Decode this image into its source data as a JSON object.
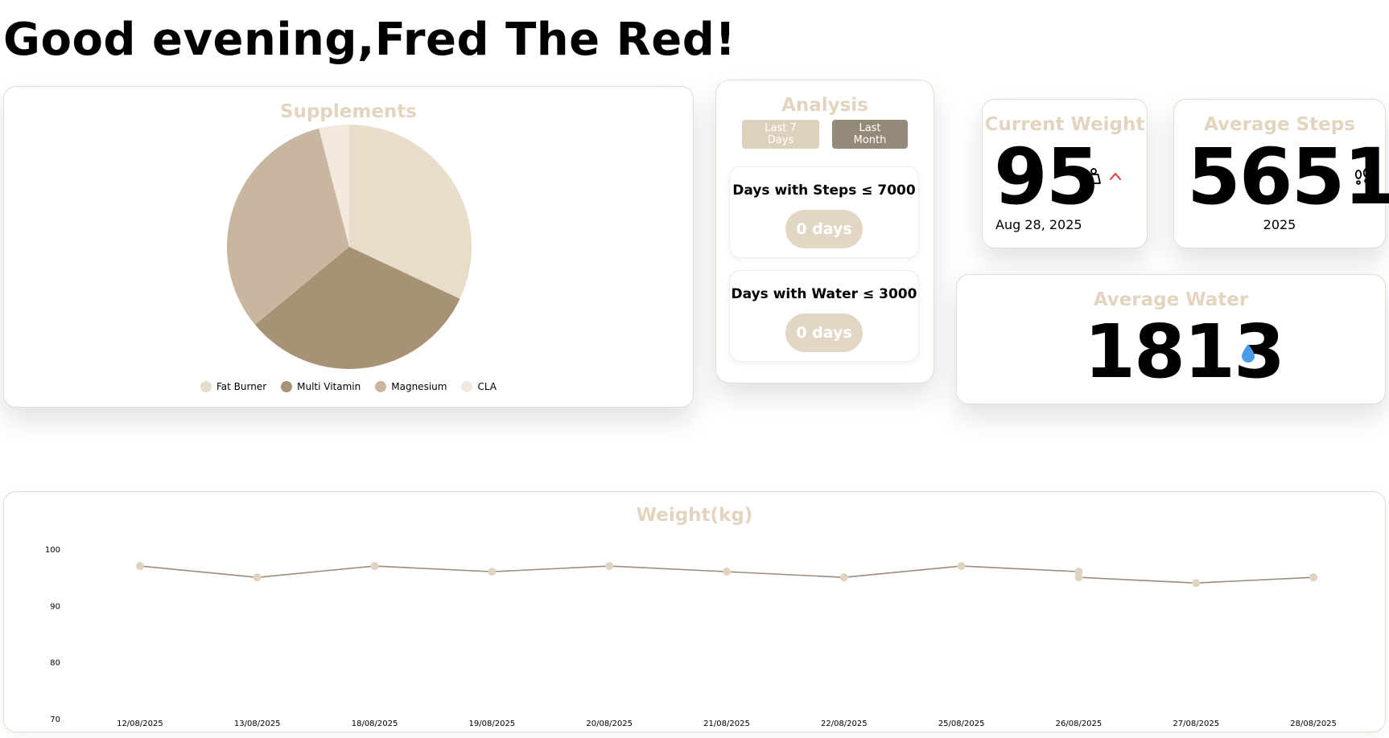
{
  "greeting": "Good evening,Fred The Red!",
  "supplements": {
    "title": "Supplements",
    "legend": [
      {
        "label": "Fat Burner",
        "color": "#e8dccb"
      },
      {
        "label": "Multi Vitamin",
        "color": "#a89275"
      },
      {
        "label": "Magnesium",
        "color": "#c8b79e"
      },
      {
        "label": "CLA",
        "color": "#f2e8dc"
      }
    ]
  },
  "chart_data": [
    {
      "type": "pie",
      "title": "Supplements",
      "labels": [
        "Fat Burner",
        "Multi Vitamin",
        "Magnesium",
        "CLA"
      ],
      "values": [
        32,
        32,
        32,
        4
      ],
      "colors": [
        "#e8dccb",
        "#a89275",
        "#c8b79e",
        "#f2e8dc"
      ],
      "legend": "bottom"
    },
    {
      "type": "line",
      "title": "Weight(kg)",
      "x": [
        "12/08/2025",
        "13/08/2025",
        "18/08/2025",
        "19/08/2025",
        "20/08/2025",
        "21/08/2025",
        "22/08/2025",
        "25/08/2025",
        "26/08/2025",
        "26/08/2025",
        "27/08/2025",
        "28/08/2025"
      ],
      "y": [
        97,
        95,
        97,
        96,
        97,
        96,
        95,
        97,
        96,
        95,
        94,
        95
      ],
      "x_ticks": [
        "12/08/2025",
        "13/08/2025",
        "18/08/2025",
        "19/08/2025",
        "20/08/2025",
        "21/08/2025",
        "22/08/2025",
        "25/08/2025",
        "26/08/2025",
        "27/08/2025",
        "28/08/2025"
      ],
      "y_ticks": [
        70,
        80,
        90,
        100
      ],
      "ylim": [
        70,
        100
      ],
      "grid": false,
      "line_color": "#9a8c7e",
      "point_color": "#e0d3bf"
    }
  ],
  "analysis": {
    "title": "Analysis",
    "btn_last7": "Last 7 Days",
    "btn_last_month": "Last Month",
    "steps_label": "Days with Steps ≤ 7000",
    "steps_value": "0 days",
    "water_label": "Days with Water ≤ 3000",
    "water_value": "0 days"
  },
  "current_weight": {
    "title": "Current Weight",
    "value": "95",
    "date": "Aug 28, 2025",
    "icons": [
      "weight-icon",
      "trend-up-icon"
    ],
    "trend_color": "#e53935"
  },
  "average_steps": {
    "title": "Average Steps",
    "value": "5651",
    "year": "2025",
    "icon": "footprints-icon"
  },
  "average_water": {
    "title": "Average Water",
    "value": "1813",
    "icon": "water-drop-icon",
    "icon_color": "#4a9be8"
  },
  "weight_chart": {
    "title": "Weight(kg)"
  }
}
